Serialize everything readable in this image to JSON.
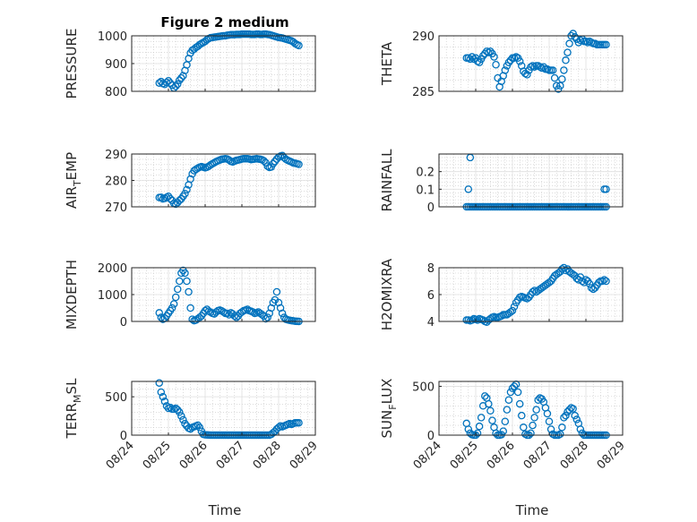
{
  "figure": {
    "title": "Figure 2 medium",
    "xlabel": "Time",
    "marker_color": "#0072BD",
    "x_tick_labels": [
      "08/24",
      "08/25",
      "08/26",
      "08/27",
      "08/28",
      "08/29"
    ]
  },
  "chart_data": [
    {
      "type": "scatter",
      "title": "Figure 2 medium",
      "ylabel": "PRESSURE",
      "ylim": [
        800,
        1000
      ],
      "yticks": [
        800,
        900,
        1000
      ],
      "xlim": [
        0,
        5
      ],
      "grid": true,
      "minor_grid": true,
      "x": [
        0.75,
        0.8,
        0.85,
        0.9,
        0.95,
        1.0,
        1.05,
        1.1,
        1.15,
        1.2,
        1.25,
        1.3,
        1.35,
        1.4,
        1.45,
        1.5,
        1.55,
        1.6,
        1.65,
        1.7,
        1.75,
        1.8,
        1.85,
        1.9,
        1.95,
        2.0,
        2.05,
        2.1,
        2.15,
        2.2,
        2.25,
        2.3,
        2.35,
        2.4,
        2.45,
        2.5,
        2.55,
        2.6,
        2.65,
        2.7,
        2.75,
        2.8,
        2.85,
        2.9,
        2.95,
        3.0,
        3.05,
        3.1,
        3.15,
        3.2,
        3.25,
        3.3,
        3.35,
        3.4,
        3.45,
        3.5,
        3.55,
        3.6,
        3.65,
        3.7,
        3.75,
        3.8,
        3.85,
        3.9,
        3.95,
        4.0,
        4.05,
        4.1,
        4.15,
        4.2,
        4.25,
        4.3,
        4.35,
        4.4,
        4.45,
        4.5,
        4.55
      ],
      "y": [
        830,
        835,
        828,
        825,
        832,
        838,
        830,
        822,
        812,
        818,
        826,
        840,
        848,
        856,
        875,
        895,
        918,
        938,
        948,
        952,
        958,
        962,
        968,
        972,
        976,
        980,
        986,
        990,
        993,
        994,
        995,
        996,
        997,
        998,
        999,
        1000,
        1000,
        1002,
        1003,
        1004,
        1004,
        1004,
        1005,
        1005,
        1005,
        1006,
        1006,
        1006,
        1006,
        1006,
        1005,
        1005,
        1005,
        1006,
        1006,
        1005,
        1005,
        1006,
        1006,
        1005,
        1004,
        1002,
        1000,
        998,
        996,
        994,
        993,
        992,
        990,
        988,
        986,
        984,
        982,
        978,
        972,
        968,
        965
      ]
    },
    {
      "type": "scatter",
      "ylabel": "THETA",
      "ylim": [
        285,
        290
      ],
      "yticks": [
        285,
        290
      ],
      "xlim": [
        0,
        5
      ],
      "grid": true,
      "minor_grid": true,
      "x": [
        0.75,
        0.8,
        0.85,
        0.9,
        0.95,
        1.0,
        1.05,
        1.1,
        1.15,
        1.2,
        1.25,
        1.3,
        1.35,
        1.4,
        1.45,
        1.5,
        1.55,
        1.6,
        1.65,
        1.7,
        1.75,
        1.8,
        1.85,
        1.9,
        1.95,
        2.0,
        2.05,
        2.1,
        2.15,
        2.2,
        2.25,
        2.3,
        2.35,
        2.4,
        2.45,
        2.5,
        2.55,
        2.6,
        2.65,
        2.7,
        2.75,
        2.8,
        2.85,
        2.9,
        2.95,
        3.0,
        3.05,
        3.1,
        3.15,
        3.2,
        3.25,
        3.3,
        3.35,
        3.4,
        3.45,
        3.5,
        3.55,
        3.6,
        3.65,
        3.7,
        3.75,
        3.8,
        3.85,
        3.9,
        3.95,
        4.0,
        4.05,
        4.1,
        4.15,
        4.2,
        4.25,
        4.3,
        4.35,
        4.4,
        4.45,
        4.5,
        4.55
      ],
      "y": [
        288.0,
        288.0,
        287.9,
        288.1,
        287.9,
        288.0,
        287.7,
        287.6,
        287.9,
        288.2,
        288.4,
        288.6,
        288.5,
        288.6,
        288.4,
        288.1,
        287.4,
        286.2,
        285.4,
        285.9,
        286.4,
        286.9,
        287.3,
        287.6,
        287.8,
        288.0,
        288.0,
        288.1,
        288.0,
        287.7,
        287.3,
        286.8,
        286.6,
        286.5,
        286.9,
        287.2,
        287.3,
        287.2,
        287.3,
        287.3,
        287.2,
        287.1,
        287.2,
        287.0,
        287.0,
        286.9,
        286.9,
        286.9,
        286.2,
        285.5,
        285.2,
        285.5,
        286.1,
        286.9,
        287.8,
        288.5,
        289.3,
        290.0,
        290.2,
        289.9,
        289.7,
        289.4,
        289.6,
        289.7,
        289.5,
        289.5,
        289.4,
        289.5,
        289.4,
        289.3,
        289.3,
        289.2,
        289.2,
        289.2,
        289.2,
        289.2,
        289.2
      ]
    },
    {
      "type": "scatter",
      "ylabel": "AIR_TEMP",
      "ylim": [
        270,
        290
      ],
      "yticks": [
        270,
        280,
        290
      ],
      "xlim": [
        0,
        5
      ],
      "grid": true,
      "minor_grid": true,
      "x": [
        0.75,
        0.8,
        0.85,
        0.9,
        0.95,
        1.0,
        1.05,
        1.1,
        1.15,
        1.2,
        1.25,
        1.3,
        1.35,
        1.4,
        1.45,
        1.5,
        1.55,
        1.6,
        1.65,
        1.7,
        1.75,
        1.8,
        1.85,
        1.9,
        1.95,
        2.0,
        2.05,
        2.1,
        2.15,
        2.2,
        2.25,
        2.3,
        2.35,
        2.4,
        2.45,
        2.5,
        2.55,
        2.6,
        2.65,
        2.7,
        2.75,
        2.8,
        2.85,
        2.9,
        2.95,
        3.0,
        3.05,
        3.1,
        3.15,
        3.2,
        3.25,
        3.3,
        3.35,
        3.4,
        3.45,
        3.5,
        3.55,
        3.6,
        3.65,
        3.7,
        3.75,
        3.8,
        3.85,
        3.9,
        3.95,
        4.0,
        4.05,
        4.1,
        4.15,
        4.2,
        4.25,
        4.3,
        4.35,
        4.4,
        4.45,
        4.5,
        4.55
      ],
      "y": [
        273.5,
        273.6,
        273.0,
        273.2,
        273.6,
        274.0,
        273.1,
        272.4,
        271.3,
        271.0,
        271.6,
        272.4,
        273.0,
        274.0,
        275.0,
        276.5,
        278.3,
        280.5,
        282.5,
        283.7,
        284.2,
        284.6,
        285.0,
        285.2,
        285.0,
        284.8,
        285.0,
        285.4,
        285.9,
        286.3,
        286.7,
        287.1,
        287.4,
        287.7,
        288.0,
        288.1,
        288.2,
        288.1,
        287.7,
        287.2,
        287.0,
        287.3,
        287.6,
        287.7,
        287.9,
        288.1,
        288.2,
        288.2,
        288.2,
        288.1,
        287.9,
        288.0,
        288.1,
        288.2,
        288.1,
        288.0,
        287.8,
        287.4,
        286.7,
        285.4,
        284.9,
        285.1,
        286.3,
        287.2,
        288.1,
        288.8,
        289.2,
        289.4,
        288.6,
        288.0,
        287.6,
        287.3,
        287.0,
        286.6,
        286.5,
        286.3,
        286.1
      ]
    },
    {
      "type": "scatter",
      "ylabel": "RAINFALL",
      "ylim": [
        0,
        0.3
      ],
      "yticks": [
        0,
        0.1,
        0.2
      ],
      "xlim": [
        0,
        5
      ],
      "grid": true,
      "minor_grid": true,
      "x": [
        0.75,
        0.8,
        0.85,
        0.9,
        0.95,
        1.0,
        1.05,
        1.1,
        1.15,
        1.2,
        1.25,
        1.3,
        1.35,
        1.4,
        1.45,
        1.5,
        1.55,
        1.6,
        1.65,
        1.7,
        1.75,
        1.8,
        1.85,
        1.9,
        1.95,
        2.0,
        2.05,
        2.1,
        2.15,
        2.2,
        2.25,
        2.3,
        2.35,
        2.4,
        2.45,
        2.5,
        2.55,
        2.6,
        2.65,
        2.7,
        2.75,
        2.8,
        2.85,
        2.9,
        2.95,
        3.0,
        3.05,
        3.1,
        3.15,
        3.2,
        3.25,
        3.3,
        3.35,
        3.4,
        3.45,
        3.5,
        3.55,
        3.6,
        3.65,
        3.7,
        3.75,
        3.8,
        3.85,
        3.9,
        3.95,
        4.0,
        4.05,
        4.1,
        4.15,
        4.2,
        4.25,
        4.3,
        4.35,
        4.4,
        4.45,
        4.5,
        4.55,
        0.8,
        0.85,
        4.5,
        4.55
      ],
      "y": [
        0,
        0,
        0,
        0,
        0,
        0,
        0,
        0,
        0,
        0,
        0,
        0,
        0,
        0,
        0,
        0,
        0,
        0,
        0,
        0,
        0,
        0,
        0,
        0,
        0,
        0,
        0,
        0,
        0,
        0,
        0,
        0,
        0,
        0,
        0,
        0,
        0,
        0,
        0,
        0,
        0,
        0,
        0,
        0,
        0,
        0,
        0,
        0,
        0,
        0,
        0,
        0,
        0,
        0,
        0,
        0,
        0,
        0,
        0,
        0,
        0,
        0,
        0,
        0,
        0,
        0,
        0,
        0,
        0,
        0,
        0,
        0,
        0,
        0,
        0,
        0,
        0,
        0.1,
        0.28,
        0.1,
        0.1
      ]
    },
    {
      "type": "scatter",
      "ylabel": "MIXDEPTH",
      "ylim": [
        0,
        2000
      ],
      "yticks": [
        0,
        1000,
        2000
      ],
      "xlim": [
        0,
        5
      ],
      "grid": true,
      "minor_grid": true,
      "x": [
        0.75,
        0.8,
        0.85,
        0.9,
        0.95,
        1.0,
        1.05,
        1.1,
        1.15,
        1.2,
        1.25,
        1.3,
        1.35,
        1.4,
        1.45,
        1.5,
        1.55,
        1.6,
        1.65,
        1.7,
        1.75,
        1.8,
        1.85,
        1.9,
        1.95,
        2.0,
        2.05,
        2.1,
        2.15,
        2.2,
        2.25,
        2.3,
        2.35,
        2.4,
        2.45,
        2.5,
        2.55,
        2.6,
        2.65,
        2.7,
        2.75,
        2.8,
        2.85,
        2.9,
        2.95,
        3.0,
        3.05,
        3.1,
        3.15,
        3.2,
        3.25,
        3.3,
        3.35,
        3.4,
        3.45,
        3.5,
        3.55,
        3.6,
        3.65,
        3.7,
        3.75,
        3.8,
        3.85,
        3.9,
        3.95,
        4.0,
        4.05,
        4.1,
        4.15,
        4.2,
        4.25,
        4.3,
        4.35,
        4.4,
        4.45,
        4.5,
        4.55
      ],
      "y": [
        320,
        150,
        80,
        120,
        200,
        300,
        400,
        500,
        650,
        900,
        1200,
        1500,
        1800,
        1900,
        1800,
        1500,
        1100,
        500,
        80,
        30,
        50,
        100,
        150,
        200,
        300,
        400,
        450,
        380,
        340,
        300,
        280,
        350,
        400,
        420,
        390,
        350,
        300,
        300,
        250,
        320,
        280,
        200,
        150,
        200,
        300,
        350,
        400,
        420,
        450,
        400,
        380,
        350,
        300,
        320,
        350,
        300,
        250,
        200,
        100,
        150,
        300,
        500,
        700,
        800,
        1100,
        700,
        500,
        300,
        150,
        80,
        60,
        40,
        30,
        20,
        10,
        5,
        2
      ]
    },
    {
      "type": "scatter",
      "ylabel": "H2OMIXRA",
      "ylim": [
        4,
        8
      ],
      "yticks": [
        4,
        6,
        8
      ],
      "xlim": [
        0,
        5
      ],
      "grid": true,
      "minor_grid": true,
      "x": [
        0.75,
        0.8,
        0.85,
        0.9,
        0.95,
        1.0,
        1.05,
        1.1,
        1.15,
        1.2,
        1.25,
        1.3,
        1.35,
        1.4,
        1.45,
        1.5,
        1.55,
        1.6,
        1.65,
        1.7,
        1.75,
        1.8,
        1.85,
        1.9,
        1.95,
        2.0,
        2.05,
        2.1,
        2.15,
        2.2,
        2.25,
        2.3,
        2.35,
        2.4,
        2.45,
        2.5,
        2.55,
        2.6,
        2.65,
        2.7,
        2.75,
        2.8,
        2.85,
        2.9,
        2.95,
        3.0,
        3.05,
        3.1,
        3.15,
        3.2,
        3.25,
        3.3,
        3.35,
        3.4,
        3.45,
        3.5,
        3.55,
        3.6,
        3.65,
        3.7,
        3.75,
        3.8,
        3.85,
        3.9,
        3.95,
        4.0,
        4.05,
        4.1,
        4.15,
        4.2,
        4.25,
        4.3,
        4.35,
        4.4,
        4.45,
        4.5,
        4.55
      ],
      "y": [
        4.1,
        4.1,
        4.05,
        4.1,
        4.2,
        4.15,
        4.1,
        4.2,
        4.15,
        4.1,
        4.0,
        3.95,
        4.1,
        4.2,
        4.3,
        4.35,
        4.3,
        4.3,
        4.35,
        4.4,
        4.5,
        4.5,
        4.5,
        4.6,
        4.7,
        4.8,
        5.1,
        5.4,
        5.6,
        5.8,
        5.85,
        5.8,
        5.75,
        5.7,
        5.8,
        6.0,
        6.2,
        6.3,
        6.2,
        6.3,
        6.4,
        6.5,
        6.6,
        6.7,
        6.8,
        6.9,
        7.0,
        7.2,
        7.4,
        7.5,
        7.6,
        7.7,
        7.9,
        8.0,
        7.8,
        7.9,
        7.7,
        7.6,
        7.5,
        7.4,
        7.2,
        7.1,
        7.3,
        7.0,
        6.9,
        7.1,
        7.0,
        6.8,
        6.5,
        6.4,
        6.5,
        6.7,
        6.9,
        7.0,
        7.0,
        7.1,
        7.0
      ]
    },
    {
      "type": "scatter",
      "ylabel": "TERR_MSL",
      "ylim": [
        0,
        700
      ],
      "yticks": [
        0,
        500
      ],
      "xlim": [
        0,
        5
      ],
      "grid": true,
      "minor_grid": true,
      "x": [
        0.75,
        0.8,
        0.85,
        0.9,
        0.95,
        1.0,
        1.05,
        1.1,
        1.15,
        1.2,
        1.25,
        1.3,
        1.35,
        1.4,
        1.45,
        1.5,
        1.55,
        1.6,
        1.65,
        1.7,
        1.75,
        1.8,
        1.85,
        1.9,
        1.95,
        2.0,
        2.05,
        2.1,
        2.15,
        2.2,
        2.25,
        2.3,
        2.35,
        2.4,
        2.45,
        2.5,
        2.55,
        2.6,
        2.65,
        2.7,
        2.75,
        2.8,
        2.85,
        2.9,
        2.95,
        3.0,
        3.05,
        3.1,
        3.15,
        3.2,
        3.25,
        3.3,
        3.35,
        3.4,
        3.45,
        3.5,
        3.55,
        3.6,
        3.65,
        3.7,
        3.75,
        3.8,
        3.85,
        3.9,
        3.95,
        4.0,
        4.05,
        4.1,
        4.15,
        4.2,
        4.25,
        4.3,
        4.35,
        4.4,
        4.45,
        4.5,
        4.55
      ],
      "y": [
        680,
        560,
        500,
        440,
        380,
        350,
        360,
        340,
        340,
        350,
        330,
        300,
        250,
        200,
        150,
        120,
        90,
        80,
        100,
        110,
        120,
        130,
        100,
        50,
        10,
        5,
        3,
        2,
        0,
        0,
        0,
        0,
        0,
        0,
        0,
        0,
        0,
        0,
        0,
        0,
        0,
        0,
        0,
        0,
        0,
        0,
        0,
        0,
        0,
        0,
        0,
        0,
        0,
        0,
        0,
        0,
        0,
        0,
        0,
        0,
        0,
        10,
        30,
        50,
        80,
        100,
        120,
        110,
        120,
        130,
        140,
        150,
        140,
        150,
        160,
        160,
        160
      ]
    },
    {
      "type": "scatter",
      "ylabel": "SUN_FLUX",
      "ylim": [
        0,
        550
      ],
      "yticks": [
        0,
        500
      ],
      "xlim": [
        0,
        5
      ],
      "grid": true,
      "minor_grid": true,
      "x": [
        0.75,
        0.8,
        0.85,
        0.9,
        0.95,
        1.0,
        1.05,
        1.1,
        1.15,
        1.2,
        1.25,
        1.3,
        1.35,
        1.4,
        1.45,
        1.5,
        1.55,
        1.6,
        1.65,
        1.7,
        1.75,
        1.8,
        1.85,
        1.9,
        1.95,
        2.0,
        2.05,
        2.1,
        2.15,
        2.2,
        2.25,
        2.3,
        2.35,
        2.4,
        2.45,
        2.5,
        2.55,
        2.6,
        2.65,
        2.7,
        2.75,
        2.8,
        2.85,
        2.9,
        2.95,
        3.0,
        3.05,
        3.1,
        3.15,
        3.2,
        3.25,
        3.3,
        3.35,
        3.4,
        3.45,
        3.5,
        3.55,
        3.6,
        3.65,
        3.7,
        3.75,
        3.8,
        3.85,
        3.9,
        3.95,
        4.0,
        4.05,
        4.1,
        4.15,
        4.2,
        4.25,
        4.3,
        4.35,
        4.4,
        4.45,
        4.5,
        4.55
      ],
      "y": [
        120,
        60,
        20,
        5,
        0,
        0,
        20,
        90,
        180,
        300,
        400,
        380,
        320,
        250,
        150,
        80,
        20,
        0,
        0,
        5,
        40,
        140,
        260,
        360,
        440,
        480,
        500,
        520,
        440,
        320,
        200,
        80,
        10,
        0,
        0,
        20,
        100,
        180,
        260,
        360,
        380,
        370,
        340,
        280,
        220,
        140,
        60,
        10,
        0,
        0,
        0,
        10,
        80,
        180,
        200,
        240,
        260,
        280,
        270,
        200,
        160,
        120,
        60,
        20,
        0,
        0,
        0,
        0,
        0,
        0,
        0,
        0,
        0,
        0,
        0,
        0,
        0
      ]
    }
  ]
}
